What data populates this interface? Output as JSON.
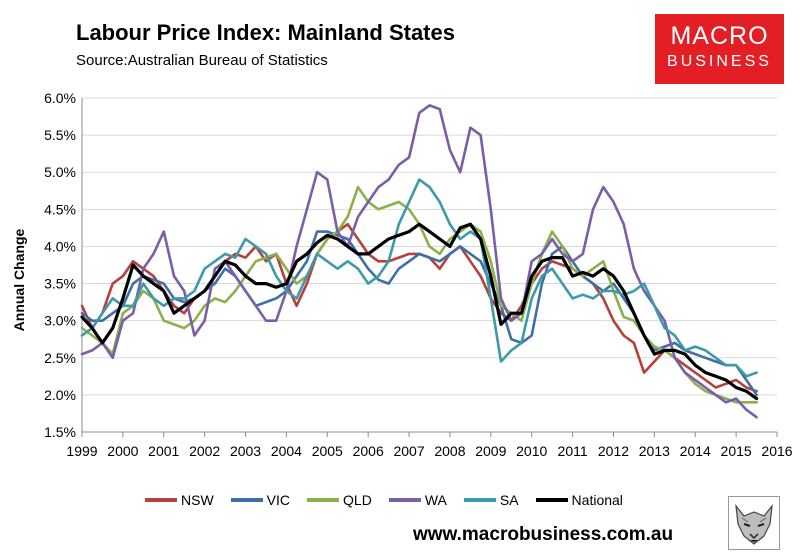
{
  "chart_data": {
    "type": "line",
    "title": "Labour Price Index: Mainland States",
    "subtitle": "Source:Australian Bureau of Statistics",
    "ylabel": "Annual Change",
    "xlabel": "",
    "ylim": [
      1.5,
      6.0
    ],
    "xlim": [
      1999.0,
      2016.0
    ],
    "x_start": 1999.0,
    "x_step": 0.25,
    "yticks": [
      "6.0%",
      "5.5%",
      "5.0%",
      "4.5%",
      "4.0%",
      "3.5%",
      "3.0%",
      "2.5%",
      "2.0%",
      "1.5%"
    ],
    "ytick_values": [
      6.0,
      5.5,
      5.0,
      4.5,
      4.0,
      3.5,
      3.0,
      2.5,
      2.0,
      1.5
    ],
    "xticks": [
      "1999",
      "2000",
      "2001",
      "2002",
      "2003",
      "2004",
      "2005",
      "2006",
      "2007",
      "2008",
      "2009",
      "2010",
      "2011",
      "2012",
      "2013",
      "2014",
      "2015",
      "2016"
    ],
    "xtick_values": [
      1999,
      2000,
      2001,
      2002,
      2003,
      2004,
      2005,
      2006,
      2007,
      2008,
      2009,
      2010,
      2011,
      2012,
      2013,
      2014,
      2015,
      2016
    ],
    "grid": "horizontal",
    "legend": "bottom",
    "series": [
      {
        "name": "NSW",
        "color": "#b5413a",
        "values": [
          3.2,
          2.9,
          3.1,
          3.5,
          3.6,
          3.8,
          3.7,
          3.6,
          3.4,
          3.2,
          3.1,
          3.3,
          3.4,
          3.6,
          3.8,
          3.9,
          3.85,
          4.0,
          3.8,
          3.9,
          3.5,
          3.2,
          3.5,
          3.9,
          4.1,
          4.2,
          4.3,
          4.1,
          3.9,
          3.8,
          3.8,
          3.85,
          3.9,
          3.9,
          3.85,
          3.7,
          3.9,
          4.0,
          3.8,
          3.6,
          3.3,
          3.1,
          3.0,
          3.2,
          3.5,
          3.7,
          3.8,
          3.75,
          3.7,
          3.6,
          3.5,
          3.3,
          3.0,
          2.8,
          2.7,
          2.3,
          2.45,
          2.6,
          2.5,
          2.4,
          2.3,
          2.2,
          2.1,
          2.15,
          2.2,
          2.1,
          2.05
        ]
      },
      {
        "name": "VIC",
        "color": "#3f6fa8",
        "values": [
          3.1,
          3.0,
          3.0,
          3.1,
          3.2,
          3.5,
          3.6,
          3.55,
          3.5,
          3.3,
          3.25,
          3.3,
          3.4,
          3.5,
          3.7,
          3.6,
          3.4,
          3.2,
          3.25,
          3.3,
          3.4,
          3.6,
          3.8,
          4.2,
          4.2,
          4.15,
          4.1,
          3.9,
          3.7,
          3.55,
          3.5,
          3.7,
          3.8,
          3.9,
          3.85,
          3.8,
          3.9,
          4.0,
          3.9,
          3.8,
          3.5,
          3.2,
          2.75,
          2.7,
          2.8,
          3.5,
          3.9,
          4.0,
          3.8,
          3.6,
          3.5,
          3.4,
          3.5,
          3.3,
          3.1,
          2.8,
          2.6,
          2.65,
          2.7,
          2.6,
          2.55,
          2.5,
          2.45,
          2.4,
          2.4,
          2.2,
          2.0
        ]
      },
      {
        "name": "QLD",
        "color": "#8cb04a",
        "values": [
          2.9,
          2.8,
          2.7,
          2.55,
          3.1,
          3.2,
          3.4,
          3.3,
          3.0,
          2.95,
          2.9,
          3.0,
          3.2,
          3.3,
          3.25,
          3.4,
          3.6,
          3.8,
          3.85,
          3.9,
          3.7,
          3.5,
          3.6,
          3.9,
          4.1,
          4.2,
          4.4,
          4.8,
          4.6,
          4.5,
          4.55,
          4.6,
          4.5,
          4.3,
          4.0,
          3.9,
          4.1,
          4.2,
          4.3,
          4.2,
          3.8,
          3.2,
          3.1,
          3.0,
          3.5,
          3.9,
          4.2,
          4.0,
          3.7,
          3.6,
          3.7,
          3.8,
          3.4,
          3.05,
          3.0,
          2.8,
          2.65,
          2.6,
          2.5,
          2.3,
          2.15,
          2.05,
          2.0,
          1.95,
          1.9,
          1.9,
          1.9
        ]
      },
      {
        "name": "WA",
        "color": "#7b5ea8",
        "values": [
          2.55,
          2.6,
          2.7,
          2.5,
          3.0,
          3.1,
          3.7,
          3.9,
          4.2,
          3.6,
          3.4,
          2.8,
          3.0,
          3.7,
          3.8,
          3.6,
          3.4,
          3.2,
          3.0,
          3.0,
          3.4,
          4.0,
          4.5,
          5.0,
          4.9,
          4.2,
          4.0,
          4.4,
          4.6,
          4.8,
          4.9,
          5.1,
          5.2,
          5.8,
          5.9,
          5.85,
          5.3,
          5.0,
          5.6,
          5.5,
          4.5,
          3.3,
          3.0,
          3.1,
          3.8,
          3.9,
          4.1,
          3.9,
          3.8,
          3.9,
          4.5,
          4.8,
          4.6,
          4.3,
          3.7,
          3.4,
          3.2,
          3.0,
          2.5,
          2.3,
          2.2,
          2.1,
          2.0,
          1.9,
          1.95,
          1.8,
          1.7
        ]
      },
      {
        "name": "SA",
        "color": "#3d9aaa",
        "values": [
          2.8,
          2.9,
          3.1,
          3.3,
          3.2,
          3.2,
          3.5,
          3.3,
          3.2,
          3.3,
          3.3,
          3.4,
          3.7,
          3.8,
          3.9,
          3.85,
          4.1,
          4.0,
          3.9,
          3.6,
          3.4,
          3.3,
          3.6,
          3.9,
          3.8,
          3.7,
          3.8,
          3.7,
          3.5,
          3.6,
          3.8,
          4.3,
          4.6,
          4.9,
          4.8,
          4.6,
          4.3,
          4.1,
          4.2,
          4.1,
          3.3,
          2.45,
          2.6,
          2.7,
          3.3,
          3.6,
          3.7,
          3.5,
          3.3,
          3.35,
          3.3,
          3.4,
          3.4,
          3.35,
          3.4,
          3.5,
          3.2,
          2.9,
          2.8,
          2.6,
          2.65,
          2.6,
          2.5,
          2.4,
          2.4,
          2.25,
          2.3
        ]
      },
      {
        "name": "National",
        "color": "#000000",
        "values": [
          3.05,
          2.9,
          2.7,
          2.9,
          3.3,
          3.75,
          3.6,
          3.5,
          3.4,
          3.1,
          3.2,
          3.3,
          3.4,
          3.6,
          3.8,
          3.75,
          3.6,
          3.5,
          3.5,
          3.45,
          3.5,
          3.8,
          3.9,
          4.05,
          4.15,
          4.1,
          4.0,
          3.9,
          3.9,
          4.0,
          4.1,
          4.15,
          4.2,
          4.3,
          4.2,
          4.1,
          4.0,
          4.25,
          4.3,
          4.1,
          3.6,
          2.95,
          3.1,
          3.1,
          3.6,
          3.8,
          3.85,
          3.85,
          3.6,
          3.65,
          3.6,
          3.7,
          3.6,
          3.4,
          3.1,
          2.8,
          2.55,
          2.6,
          2.6,
          2.55,
          2.4,
          2.3,
          2.25,
          2.2,
          2.1,
          2.05,
          1.95
        ]
      }
    ]
  },
  "brand": {
    "line1": "MACRO",
    "line2": "BUSINESS",
    "color": "#e31e24"
  },
  "footer": {
    "website": "www.macrobusiness.com.au"
  }
}
